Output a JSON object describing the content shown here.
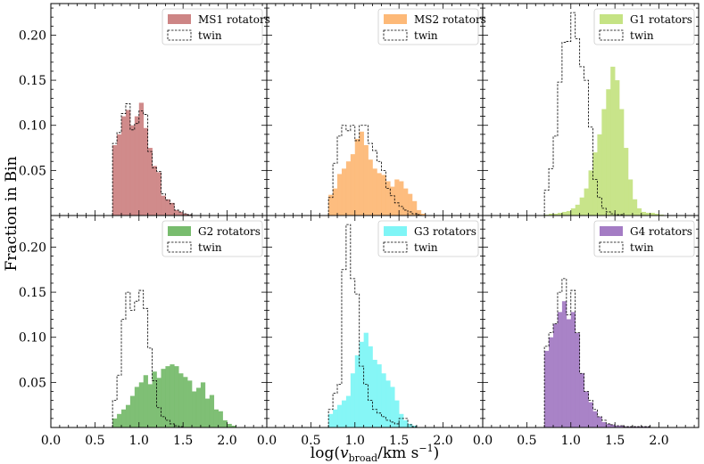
{
  "figure": {
    "ylabel": "Fraction in Bin",
    "xlabel": "log(v_broad/km s^-1)",
    "twin_label": "twin"
  },
  "chart_data": [
    {
      "type": "bar",
      "panel": "MS1",
      "series_name": "MS1 rotators",
      "color": "#cd8585",
      "bin_width": 0.05,
      "xlim": [
        0.0,
        2.45
      ],
      "ylim": [
        0.0,
        0.235
      ],
      "xticks": [
        0.0,
        0.5,
        1.0,
        1.5,
        2.0
      ],
      "yticks": [
        0.05,
        0.1,
        0.15,
        0.2
      ],
      "bins_left": [
        0.7,
        0.75,
        0.8,
        0.85,
        0.9,
        0.95,
        1.0,
        1.05,
        1.1,
        1.15,
        1.2,
        1.25,
        1.3,
        1.35,
        1.4,
        1.45,
        1.5,
        1.55
      ],
      "values": [
        0.078,
        0.09,
        0.11,
        0.117,
        0.1,
        0.11,
        0.125,
        0.097,
        0.075,
        0.055,
        0.048,
        0.022,
        0.018,
        0.014,
        0.006,
        0.004,
        0.002,
        0.001
      ],
      "twin_values": [
        0.08,
        0.092,
        0.113,
        0.124,
        0.095,
        0.102,
        0.116,
        0.112,
        0.071,
        0.053,
        0.049,
        0.024,
        0.017,
        0.013,
        0.006,
        0.004,
        0.002,
        0.001
      ]
    },
    {
      "type": "bar",
      "panel": "MS2",
      "series_name": "MS2 rotators",
      "color": "#fdb978",
      "bin_width": 0.05,
      "xlim": [
        0.0,
        2.45
      ],
      "ylim": [
        0.0,
        0.235
      ],
      "xticks": [
        0.0,
        0.5,
        1.0,
        1.5,
        2.0
      ],
      "yticks": [
        0.05,
        0.1,
        0.15,
        0.2
      ],
      "bins_left": [
        0.7,
        0.75,
        0.8,
        0.85,
        0.9,
        0.95,
        1.0,
        1.05,
        1.1,
        1.15,
        1.2,
        1.25,
        1.3,
        1.35,
        1.4,
        1.45,
        1.5,
        1.55,
        1.6,
        1.65,
        1.7,
        1.75
      ],
      "values": [
        0.023,
        0.03,
        0.046,
        0.052,
        0.06,
        0.068,
        0.085,
        0.093,
        0.078,
        0.062,
        0.052,
        0.047,
        0.045,
        0.038,
        0.032,
        0.04,
        0.038,
        0.03,
        0.024,
        0.016,
        0.006,
        0.002
      ],
      "twin_values": [
        0.02,
        0.058,
        0.088,
        0.1,
        0.094,
        0.1,
        0.083,
        0.1,
        0.1,
        0.08,
        0.072,
        0.06,
        0.05,
        0.03,
        0.022,
        0.014,
        0.01,
        0.006,
        0.004,
        0.002,
        0.001,
        0.0
      ]
    },
    {
      "type": "bar",
      "panel": "G1",
      "series_name": "G1 rotators",
      "color": "#c5e384",
      "bin_width": 0.05,
      "xlim": [
        0.0,
        2.45
      ],
      "ylim": [
        0.0,
        0.235
      ],
      "xticks": [
        0.0,
        0.5,
        1.0,
        1.5,
        2.0
      ],
      "yticks": [
        0.05,
        0.1,
        0.15,
        0.2
      ],
      "bins_left": [
        0.7,
        0.75,
        0.8,
        0.85,
        0.9,
        0.95,
        1.0,
        1.05,
        1.1,
        1.15,
        1.2,
        1.25,
        1.3,
        1.35,
        1.4,
        1.45,
        1.5,
        1.55,
        1.6,
        1.65,
        1.7,
        1.75,
        1.8,
        1.85,
        1.9,
        1.95,
        2.0
      ],
      "values": [
        0.001,
        0.002,
        0.002,
        0.003,
        0.004,
        0.005,
        0.008,
        0.012,
        0.02,
        0.03,
        0.05,
        0.07,
        0.09,
        0.118,
        0.14,
        0.165,
        0.15,
        0.118,
        0.075,
        0.04,
        0.018,
        0.008,
        0.004,
        0.003,
        0.003,
        0.002,
        0.001
      ],
      "twin_values": [
        0.028,
        0.052,
        0.088,
        0.148,
        0.192,
        0.193,
        0.225,
        0.196,
        0.165,
        0.15,
        0.098,
        0.04,
        0.02,
        0.008,
        0.004,
        0.002,
        0.001,
        0.001,
        0.0,
        0.0,
        0.0,
        0.0,
        0.0,
        0.0,
        0.0,
        0.0,
        0.0
      ]
    },
    {
      "type": "bar",
      "panel": "G2",
      "series_name": "G2 rotators",
      "color": "#78bc6e",
      "bin_width": 0.05,
      "xlim": [
        0.0,
        2.45
      ],
      "ylim": [
        0.0,
        0.235
      ],
      "xticks": [
        0.0,
        0.5,
        1.0,
        1.5,
        2.0
      ],
      "yticks": [
        0.05,
        0.1,
        0.15,
        0.2
      ],
      "bins_left": [
        0.7,
        0.75,
        0.8,
        0.85,
        0.9,
        0.95,
        1.0,
        1.05,
        1.1,
        1.15,
        1.2,
        1.25,
        1.3,
        1.35,
        1.4,
        1.45,
        1.5,
        1.55,
        1.6,
        1.65,
        1.7,
        1.75,
        1.8,
        1.85,
        1.9,
        1.95,
        2.0,
        2.05
      ],
      "values": [
        0.01,
        0.015,
        0.02,
        0.025,
        0.035,
        0.045,
        0.05,
        0.058,
        0.048,
        0.062,
        0.055,
        0.065,
        0.068,
        0.07,
        0.068,
        0.06,
        0.056,
        0.052,
        0.04,
        0.044,
        0.05,
        0.032,
        0.036,
        0.02,
        0.018,
        0.008,
        0.004,
        0.002
      ],
      "twin_values": [
        0.03,
        0.058,
        0.12,
        0.15,
        0.13,
        0.14,
        0.152,
        0.132,
        0.088,
        0.052,
        0.022,
        0.012,
        0.008,
        0.004,
        0.002,
        0.001,
        0.0,
        0.0,
        0.0,
        0.0,
        0.0,
        0.0,
        0.0,
        0.0,
        0.0,
        0.0,
        0.0,
        0.0
      ]
    },
    {
      "type": "bar",
      "panel": "G3",
      "series_name": "G3 rotators",
      "color": "#7ff5f6",
      "bin_width": 0.05,
      "xlim": [
        0.0,
        2.45
      ],
      "ylim": [
        0.0,
        0.235
      ],
      "xticks": [
        0.0,
        0.5,
        1.0,
        1.5,
        2.0
      ],
      "yticks": [
        0.05,
        0.1,
        0.15,
        0.2
      ],
      "bins_left": [
        0.7,
        0.75,
        0.8,
        0.85,
        0.9,
        0.95,
        1.0,
        1.05,
        1.1,
        1.15,
        1.2,
        1.25,
        1.3,
        1.35,
        1.4,
        1.45,
        1.5,
        1.55,
        1.6,
        1.65
      ],
      "values": [
        0.015,
        0.02,
        0.025,
        0.03,
        0.035,
        0.06,
        0.08,
        0.095,
        0.105,
        0.09,
        0.075,
        0.07,
        0.06,
        0.052,
        0.045,
        0.03,
        0.015,
        0.008,
        0.004,
        0.002
      ],
      "twin_values": [
        0.02,
        0.038,
        0.048,
        0.175,
        0.225,
        0.165,
        0.148,
        0.068,
        0.048,
        0.03,
        0.02,
        0.016,
        0.012,
        0.008,
        0.006,
        0.004,
        0.01,
        0.01,
        0.003,
        0.001
      ]
    },
    {
      "type": "bar",
      "panel": "G4",
      "series_name": "G4 rotators",
      "color": "#a47cc4",
      "bin_width": 0.05,
      "xlim": [
        0.0,
        2.45
      ],
      "ylim": [
        0.0,
        0.235
      ],
      "xticks": [
        0.0,
        0.5,
        1.0,
        1.5,
        2.0
      ],
      "yticks": [
        0.05,
        0.1,
        0.15,
        0.2
      ],
      "bins_left": [
        0.7,
        0.75,
        0.8,
        0.85,
        0.9,
        0.95,
        1.0,
        1.05,
        1.1,
        1.15,
        1.2,
        1.25,
        1.3,
        1.35,
        1.4,
        1.45,
        1.5,
        1.55,
        1.6,
        1.65,
        1.7,
        1.75,
        1.8,
        1.85
      ],
      "values": [
        0.085,
        0.1,
        0.115,
        0.128,
        0.14,
        0.12,
        0.128,
        0.105,
        0.06,
        0.04,
        0.028,
        0.018,
        0.012,
        0.006,
        0.004,
        0.003,
        0.002,
        0.002,
        0.001,
        0.001,
        0.001,
        0.001,
        0.001,
        0.001
      ],
      "twin_values": [
        0.09,
        0.105,
        0.115,
        0.15,
        0.165,
        0.125,
        0.152,
        0.105,
        0.06,
        0.04,
        0.03,
        0.02,
        0.012,
        0.008,
        0.004,
        0.003,
        0.002,
        0.002,
        0.001,
        0.001,
        0.001,
        0.001,
        0.001,
        0.001
      ]
    }
  ]
}
